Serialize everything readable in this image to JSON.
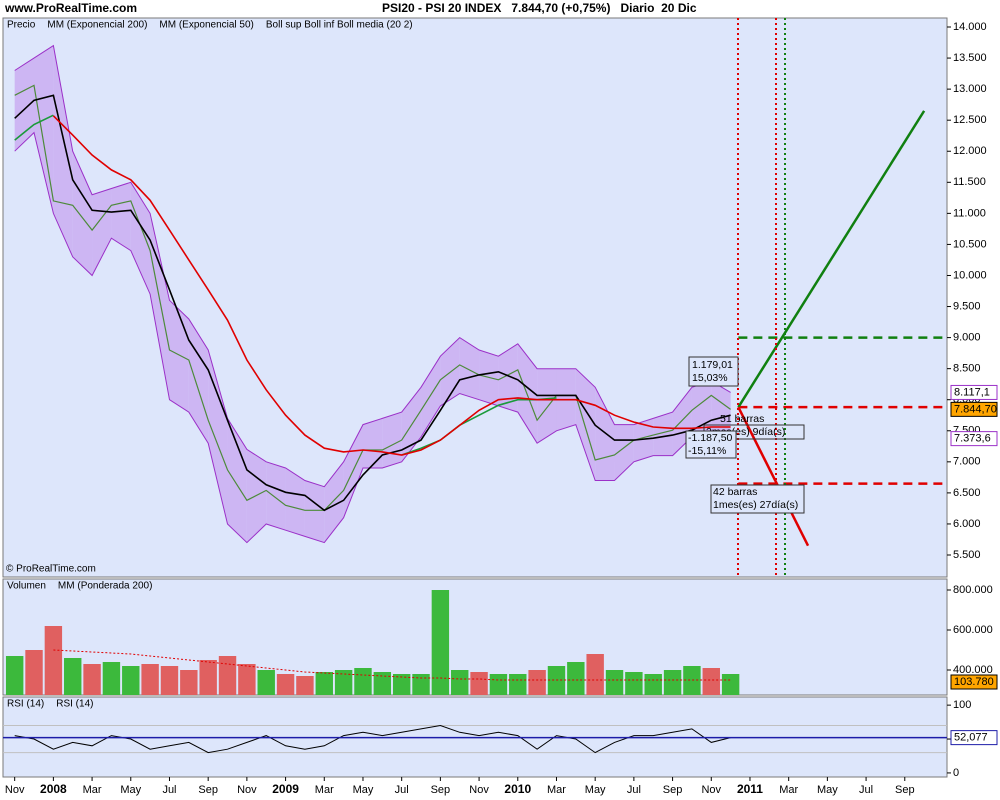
{
  "header": {
    "site": "www.ProRealTime.com",
    "title": "PSI20 - PSI 20 INDEX   7.844,70 (+0,75%)   Diario  20 Dic"
  },
  "copyright": "© ProRealTime.com",
  "annotations": {
    "rise_amount": "1.179,01",
    "rise_percent": "15,03%",
    "bars_a": "51 barras",
    "time_a": "2mes(es) 9día(s)",
    "drop_amount": "-1.187,50",
    "drop_percent": "-15,11%",
    "bars_b": "42 barras",
    "time_b": "1mes(es) 27día(s)"
  },
  "chart_data": [
    {
      "type": "line",
      "ylim": [
        5146,
        14145
      ],
      "yticks": [
        {
          "value": 14000,
          "label": "14.000"
        },
        {
          "value": 13500,
          "label": "13.500"
        },
        {
          "value": 13000,
          "label": "13.000"
        },
        {
          "value": 12500,
          "label": "12.500"
        },
        {
          "value": 12000,
          "label": "12.000"
        },
        {
          "value": 11500,
          "label": "11.500"
        },
        {
          "value": 11000,
          "label": "11.000"
        },
        {
          "value": 10500,
          "label": "10.500"
        },
        {
          "value": 10000,
          "label": "10.000"
        },
        {
          "value": 9500,
          "label": "9.500"
        },
        {
          "value": 9000,
          "label": "9.000"
        },
        {
          "value": 8500,
          "label": "8.500"
        },
        {
          "value": 8000,
          "label": "8.000"
        },
        {
          "value": 7500,
          "label": "7.500"
        },
        {
          "value": 7000,
          "label": "7.000"
        },
        {
          "value": 6500,
          "label": "6.500"
        },
        {
          "value": 6000,
          "label": "6.000"
        },
        {
          "value": 5500,
          "label": "5.500"
        }
      ],
      "series": [
        {
          "name": "Precio",
          "color": "#4d8a3a",
          "values": [
            12900,
            13060,
            11200,
            11130,
            10730,
            11130,
            11200,
            10400,
            8800,
            8640,
            7670,
            6870,
            6380,
            6540,
            6300,
            6220,
            6220,
            6540,
            7190,
            7190,
            7350,
            7830,
            8320,
            8560,
            8400,
            8320,
            8480,
            7670,
            8070,
            8070,
            7030,
            7110,
            7350,
            7430,
            7510,
            7830,
            8070,
            7844.7,
            null,
            null,
            null,
            null,
            null,
            null,
            null,
            null,
            null,
            null
          ]
        },
        {
          "name": "MM (Exponencial 200)",
          "color": "#1a9a3a",
          "values": [
            12180,
            12430,
            12580,
            null,
            null,
            null,
            null,
            null,
            null,
            null,
            null,
            null,
            null,
            null,
            null,
            null,
            null,
            null,
            null,
            null,
            7110,
            7220,
            7350,
            7590,
            7750,
            7910,
            8000,
            8000,
            8030,
            null,
            null,
            null,
            null,
            null,
            null,
            null,
            null,
            null,
            null,
            null,
            null,
            null,
            null,
            null,
            null,
            null,
            null,
            null
          ]
        },
        {
          "name": "MM (Exponencial 50)",
          "color": "#000000",
          "values": [
            12530,
            12820,
            12900,
            11540,
            11050,
            11020,
            11050,
            10570,
            9770,
            8960,
            8480,
            7670,
            6870,
            6630,
            6510,
            6460,
            6220,
            6380,
            6790,
            7110,
            7190,
            7350,
            7830,
            8320,
            8400,
            8450,
            8320,
            8070,
            8070,
            8070,
            7590,
            7350,
            7350,
            7380,
            7430,
            7510,
            7670,
            7750,
            null,
            null,
            null,
            null,
            null,
            null,
            null,
            null,
            null,
            null
          ]
        },
        {
          "color": "#e00000",
          "values": [
            null,
            null,
            12570,
            12260,
            11940,
            11700,
            11540,
            11210,
            10730,
            10250,
            9770,
            9280,
            8640,
            8160,
            7750,
            7430,
            7220,
            7160,
            7190,
            7160,
            7110,
            7190,
            7350,
            7590,
            7830,
            8000,
            8030,
            8000,
            8000,
            8000,
            7910,
            7750,
            7640,
            7560,
            7540,
            7540,
            7560,
            7560,
            null,
            null,
            null,
            null,
            null,
            null,
            null,
            null,
            null,
            null
          ]
        }
      ],
      "band": {
        "name": "Boll sup Boll inf Boll media (20 2)",
        "color": "#9b30c8",
        "fill": "#c7a6f0",
        "upper": [
          13300,
          13500,
          13700,
          12000,
          11300,
          11400,
          11500,
          11000,
          9600,
          9300,
          8800,
          7700,
          7200,
          7000,
          6900,
          6700,
          6600,
          7000,
          7600,
          7700,
          7800,
          8200,
          8700,
          9000,
          8800,
          8700,
          8900,
          8500,
          8500,
          8500,
          8200,
          7600,
          7600,
          7700,
          7800,
          8200,
          8300,
          8117.1,
          null,
          null,
          null,
          null,
          null,
          null,
          null,
          null,
          null,
          null
        ],
        "lower": [
          12000,
          12300,
          11000,
          10300,
          10000,
          10600,
          10400,
          9700,
          8000,
          7800,
          7300,
          6000,
          5700,
          6000,
          5900,
          5800,
          5700,
          6100,
          6900,
          6900,
          7000,
          7400,
          7900,
          8100,
          8000,
          7900,
          7800,
          7300,
          7500,
          7600,
          6700,
          6700,
          7000,
          7100,
          7100,
          7400,
          7500,
          7373.6,
          null,
          null,
          null,
          null,
          null,
          null,
          null,
          null,
          null,
          null
        ]
      },
      "trend_lines": [
        {
          "color": "#108010",
          "from": [
            37.4,
            7880
          ],
          "to": [
            47,
            12650
          ]
        },
        {
          "color": "#e00000",
          "from": [
            37.4,
            7880
          ],
          "to": [
            41,
            5650
          ]
        }
      ],
      "levels": [
        {
          "value": 9000,
          "color": "#108010",
          "from": 37.4
        },
        {
          "value": 7880,
          "color": "#e00000",
          "from": 37.4
        },
        {
          "value": 6650,
          "color": "#e00000",
          "from": 37.4
        }
      ],
      "last_labels": [
        {
          "value": 8117.1,
          "label": "8.117,1",
          "color": "#9b30c8",
          "filled": false
        },
        {
          "value": 7844.7,
          "label": "7.844,70",
          "color": "#ffa500",
          "filled": true
        },
        {
          "value": 7373.6,
          "label": "7.373,6",
          "color": "#9b30c8",
          "filled": false
        }
      ]
    },
    {
      "type": "bar",
      "ylim": [
        275000,
        855000
      ],
      "yticks": [
        {
          "value": 400000,
          "label": "400.000"
        },
        {
          "value": 600000,
          "label": "600.000"
        },
        {
          "value": 800000,
          "label": "800.000"
        }
      ],
      "series": [
        {
          "name": "Volumen",
          "color": "#3cb93c",
          "values": [
            470000,
            500000,
            620000,
            460000,
            430000,
            440000,
            420000,
            430000,
            420000,
            400000,
            450000,
            470000,
            430000,
            400000,
            380000,
            370000,
            390000,
            400000,
            410000,
            390000,
            380000,
            380000,
            800000,
            400000,
            390000,
            380000,
            380000,
            400000,
            420000,
            440000,
            480000,
            400000,
            390000,
            380000,
            400000,
            420000,
            410000,
            380000,
            null,
            null,
            null,
            null,
            null,
            null,
            null,
            null,
            null,
            null
          ],
          "bar_colors": [
            "#3cb93c",
            "#e06060",
            "#e06060",
            "#3cb93c",
            "#e06060",
            "#3cb93c",
            "#3cb93c",
            "#e06060",
            "#e06060",
            "#e06060",
            "#e06060",
            "#e06060",
            "#e06060",
            "#3cb93c",
            "#e06060",
            "#e06060",
            "#3cb93c",
            "#3cb93c",
            "#3cb93c",
            "#3cb93c",
            "#3cb93c",
            "#3cb93c",
            "#3cb93c",
            "#3cb93c",
            "#e06060",
            "#3cb93c",
            "#3cb93c",
            "#e06060",
            "#3cb93c",
            "#3cb93c",
            "#e06060",
            "#3cb93c",
            "#3cb93c",
            "#3cb93c",
            "#3cb93c",
            "#3cb93c",
            "#e06060",
            "#3cb93c",
            null,
            null,
            null,
            null,
            null,
            null,
            null,
            null,
            null,
            null
          ]
        },
        {
          "name": "MM (Ponderada 200)",
          "color": "#e00000",
          "type": "line",
          "values": [
            null,
            null,
            500000,
            495000,
            490000,
            485000,
            480000,
            470000,
            460000,
            450000,
            440000,
            430000,
            420000,
            410000,
            400000,
            390000,
            385000,
            380000,
            375000,
            370000,
            365000,
            360000,
            360000,
            355000,
            355000,
            350000,
            350000,
            350000,
            350000,
            350000,
            350000,
            350000,
            350000,
            350000,
            350000,
            350000,
            350000,
            350000,
            null,
            null,
            null,
            null,
            null,
            null,
            null,
            null,
            null,
            null
          ]
        }
      ],
      "last_label": {
        "value": 103780,
        "label": "103.780",
        "color": "#ffa500"
      }
    },
    {
      "type": "line",
      "categories": [
        "Nov",
        null,
        "2008",
        null,
        "Mar",
        null,
        "May",
        null,
        "Jul",
        null,
        "Sep",
        null,
        "Nov",
        null,
        "2009",
        null,
        "Mar",
        null,
        "May",
        null,
        "Jul",
        null,
        "Sep",
        null,
        "Nov",
        null,
        "2010",
        null,
        "Mar",
        null,
        "May",
        null,
        "Jul",
        null,
        "Sep",
        null,
        "Nov",
        null,
        "2011",
        null,
        "Mar",
        null,
        "May",
        null,
        "Jul",
        null,
        "Sep",
        null
      ],
      "ylim": [
        -6,
        112
      ],
      "yticks": [
        0,
        50,
        100
      ],
      "hlines": [
        {
          "value": 30,
          "color": "#c0c0c0"
        },
        {
          "value": 70,
          "color": "#c0c0c0"
        }
      ],
      "series": [
        {
          "name": "RSI (14)",
          "color": "#000000",
          "values": [
            55,
            50,
            35,
            45,
            40,
            55,
            50,
            35,
            40,
            45,
            30,
            35,
            45,
            55,
            40,
            35,
            40,
            55,
            60,
            55,
            60,
            65,
            70,
            60,
            55,
            60,
            55,
            35,
            55,
            50,
            30,
            45,
            55,
            55,
            60,
            65,
            45,
            52.077,
            null,
            null,
            null,
            null,
            null,
            null,
            null,
            null,
            null,
            null
          ]
        }
      ],
      "level": {
        "name": "RSI (14)",
        "value": 52.077,
        "label": "52,077",
        "color": "#1c1ca8"
      }
    }
  ]
}
